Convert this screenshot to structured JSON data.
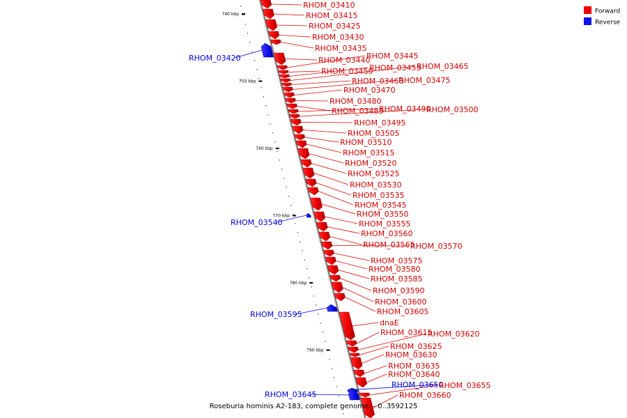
{
  "legend": [
    {
      "label": "Forward",
      "color": "#ee0000"
    },
    {
      "label": "Reverse",
      "color": "#1010ee"
    }
  ],
  "caption": "Roseburia hominis A2-183, complete genome. - 0..3592125",
  "axis_ticks": [
    {
      "label": "740 kbp",
      "kbp": 740
    },
    {
      "label": "750 kbp",
      "kbp": 750
    },
    {
      "label": "760 kbp",
      "kbp": 760
    },
    {
      "label": "770 kbp",
      "kbp": 770
    },
    {
      "label": "780 kbp",
      "kbp": 780
    },
    {
      "label": "790 kbp",
      "kbp": 790
    }
  ],
  "genes": [
    {
      "name": "RHOM_03410",
      "strand": "forward"
    },
    {
      "name": "RHOM_03415",
      "strand": "forward"
    },
    {
      "name": "RHOM_03425",
      "strand": "forward"
    },
    {
      "name": "RHOM_03430",
      "strand": "forward"
    },
    {
      "name": "RHOM_03435",
      "strand": "forward"
    },
    {
      "name": "RHOM_03420",
      "strand": "reverse"
    },
    {
      "name": "RHOM_03440",
      "strand": "forward"
    },
    {
      "name": "RHOM_03445",
      "strand": "forward"
    },
    {
      "name": "RHOM_03450",
      "strand": "forward"
    },
    {
      "name": "RHOM_03455",
      "strand": "forward"
    },
    {
      "name": "RHOM_03465",
      "strand": "forward"
    },
    {
      "name": "RHOM_03460",
      "strand": "forward"
    },
    {
      "name": "RHOM_03475",
      "strand": "forward"
    },
    {
      "name": "RHOM_03470",
      "strand": "forward"
    },
    {
      "name": "RHOM_03480",
      "strand": "forward"
    },
    {
      "name": "RHOM_03485",
      "strand": "forward"
    },
    {
      "name": "RHOM_03490",
      "strand": "forward"
    },
    {
      "name": "RHOM_03500",
      "strand": "forward"
    },
    {
      "name": "RHOM_03495",
      "strand": "forward"
    },
    {
      "name": "RHOM_03505",
      "strand": "forward"
    },
    {
      "name": "RHOM_03510",
      "strand": "forward"
    },
    {
      "name": "RHOM_03515",
      "strand": "forward"
    },
    {
      "name": "RHOM_03520",
      "strand": "forward"
    },
    {
      "name": "RHOM_03525",
      "strand": "forward"
    },
    {
      "name": "RHOM_03530",
      "strand": "forward"
    },
    {
      "name": "RHOM_03535",
      "strand": "forward"
    },
    {
      "name": "RHOM_03545",
      "strand": "forward"
    },
    {
      "name": "RHOM_03540",
      "strand": "reverse"
    },
    {
      "name": "RHOM_03550",
      "strand": "forward"
    },
    {
      "name": "RHOM_03555",
      "strand": "forward"
    },
    {
      "name": "RHOM_03560",
      "strand": "forward"
    },
    {
      "name": "RHOM_03565",
      "strand": "forward"
    },
    {
      "name": "RHOM_03570",
      "strand": "forward"
    },
    {
      "name": "RHOM_03575",
      "strand": "forward"
    },
    {
      "name": "RHOM_03580",
      "strand": "forward"
    },
    {
      "name": "RHOM_03585",
      "strand": "forward"
    },
    {
      "name": "RHOM_03590",
      "strand": "forward"
    },
    {
      "name": "RHOM_03600",
      "strand": "forward"
    },
    {
      "name": "RHOM_03595",
      "strand": "reverse"
    },
    {
      "name": "RHOM_03605",
      "strand": "forward"
    },
    {
      "name": "dnaE",
      "strand": "forward"
    },
    {
      "name": "RHOM_03615",
      "strand": "forward"
    },
    {
      "name": "RHOM_03620",
      "strand": "forward"
    },
    {
      "name": "RHOM_03625",
      "strand": "forward"
    },
    {
      "name": "RHOM_03630",
      "strand": "forward"
    },
    {
      "name": "RHOM_03635",
      "strand": "forward"
    },
    {
      "name": "RHOM_03640",
      "strand": "forward"
    },
    {
      "name": "RHOM_03650",
      "strand": "reverse"
    },
    {
      "name": "RHOM_03655",
      "strand": "forward"
    },
    {
      "name": "RHOM_03645",
      "strand": "reverse"
    },
    {
      "name": "RHOM_03660",
      "strand": "forward"
    }
  ]
}
